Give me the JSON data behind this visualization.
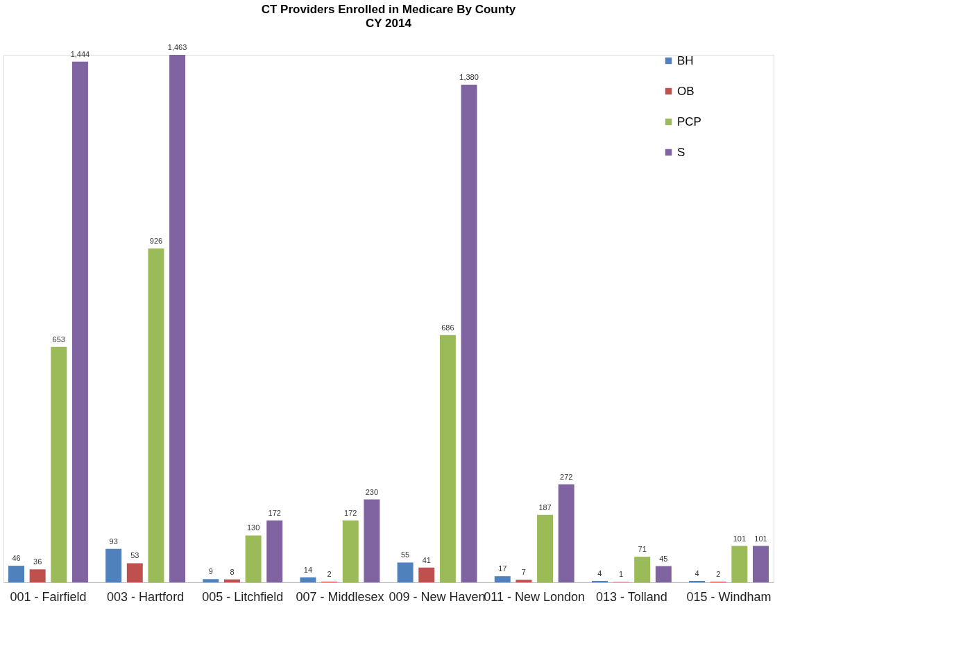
{
  "chart_data": {
    "type": "bar",
    "title": "CT Providers Enrolled in Medicare By County",
    "subtitle": "CY 2014",
    "categories": [
      "001 - Fairfield",
      "003 - Hartford",
      "005 - Litchfield",
      "007 - Middlesex",
      "009 - New Haven",
      "011 - New London",
      "013 - Tolland",
      "015 - Windham"
    ],
    "series": [
      {
        "name": "BH",
        "color": "#4f81bd",
        "values": [
          46,
          93,
          9,
          14,
          55,
          17,
          4,
          4
        ],
        "value_labels": [
          "46",
          "93",
          "9",
          "14",
          "55",
          "17",
          "4",
          "4"
        ]
      },
      {
        "name": "OB",
        "color": "#c0504d",
        "values": [
          36,
          53,
          8,
          2,
          41,
          7,
          1,
          2
        ],
        "value_labels": [
          "36",
          "53",
          "8",
          "2",
          "41",
          "7",
          "1",
          "2"
        ]
      },
      {
        "name": "PCP",
        "color": "#9bbb59",
        "values": [
          653,
          926,
          130,
          172,
          686,
          187,
          71,
          101
        ],
        "value_labels": [
          "653",
          "926",
          "130",
          "172",
          "686",
          "187",
          "71",
          "101"
        ]
      },
      {
        "name": "S",
        "color": "#8064a2",
        "values": [
          1444,
          1463,
          172,
          230,
          1380,
          272,
          45,
          101
        ],
        "value_labels": [
          "1,444",
          "1,463",
          "172",
          "230",
          "1,380",
          "272",
          "45",
          "101"
        ]
      }
    ],
    "grid": false,
    "legend": "right"
  }
}
